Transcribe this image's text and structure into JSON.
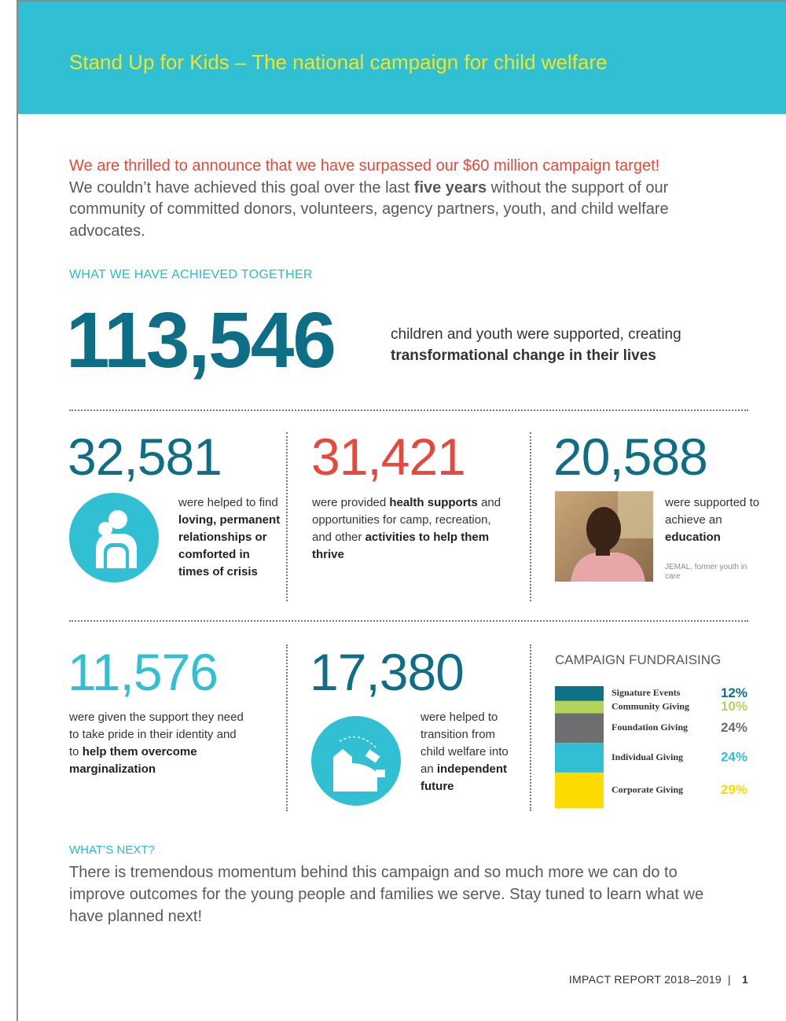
{
  "header": {
    "title": "Stand Up for Kids – The national campaign for child welfare"
  },
  "intro": {
    "highlight": "We are thrilled to announce that we have surpassed our $60 million campaign target!",
    "body": [
      "We couldn’t have achieved this goal over the last ",
      "five years",
      " without the support of our community of committed donors, volunteers, agency partners, youth, and child welfare advocates."
    ]
  },
  "achieved": {
    "heading": "WHAT WE HAVE ACHIEVED TOGETHER",
    "number": "113,546",
    "text": [
      "children and youth were supported, creating ",
      "transformational change in their lives"
    ]
  },
  "stats": [
    {
      "number": "32,581",
      "text": [
        "were helped to find ",
        "loving, permanent relationships or comforted in times of crisis"
      ]
    },
    {
      "number": "31,421",
      "text": [
        "were provided ",
        "health supports",
        " and opportunities for camp, recreation, and other ",
        "activities to help them thrive"
      ]
    },
    {
      "number": "20,588",
      "text": [
        "were supported to achieve an ",
        "education"
      ],
      "caption": "JEMAL, former youth in care"
    },
    {
      "number": "11,576",
      "text": [
        "were given the support they need to take pride in their identity and to ",
        "help them overcome marginalization"
      ]
    },
    {
      "number": "17,380",
      "text": [
        "were helped to transition from child welfare into an ",
        "independent future"
      ]
    }
  ],
  "fundraising": {
    "heading": "CAMPAIGN FUNDRAISING",
    "items": [
      {
        "label": "Signature Events",
        "value": 12,
        "value_label": "12%",
        "color": "#0e7186"
      },
      {
        "label": "Community Giving",
        "value": 10,
        "value_label": "10%",
        "color": "#b3d35a"
      },
      {
        "label": "Foundation Giving",
        "value": 24,
        "value_label": "24%",
        "color": "#6d6e70"
      },
      {
        "label": "Individual Giving",
        "value": 24,
        "value_label": "24%",
        "color": "#31c0d3"
      },
      {
        "label": "Corporate Giving",
        "value": 29,
        "value_label": "29%",
        "color": "#fbdb00"
      }
    ]
  },
  "next": {
    "heading": "WHAT’S NEXT?",
    "text": "There is tremendous momentum behind this campaign and so much more we can do to improve outcomes for the young people and families we serve. Stay tuned to learn what we have planned next!"
  },
  "footer": {
    "report": "IMPACT REPORT 2018–2019",
    "separator": "|",
    "page": "1"
  }
}
